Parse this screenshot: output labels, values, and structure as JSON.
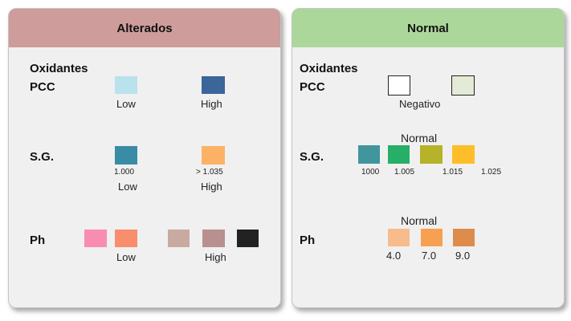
{
  "left": {
    "title": "Alterados",
    "section_title": "Oxidantes",
    "pcc": {
      "label": "PCC",
      "low": "Low",
      "high": "High",
      "colors": [
        "#b9e2ec",
        "#3c6599"
      ]
    },
    "sg": {
      "label": "S.G.",
      "val_low": "1.000",
      "val_high": "> 1.035",
      "low": "Low",
      "high": "High",
      "colors": [
        "#3a8ba6",
        "#fcb265"
      ]
    },
    "ph": {
      "label": "Ph",
      "low": "Low",
      "high": "High",
      "colors": [
        "#f98cb2",
        "#f88e6d",
        "#c8aaa1",
        "#b89090",
        "#222222"
      ]
    }
  },
  "right": {
    "title": "Normal",
    "section_title": "Oxidantes",
    "pcc": {
      "label": "PCC",
      "caption": "Negativo",
      "colors": [
        "#ffffff",
        "#e3ead6"
      ]
    },
    "sg": {
      "label": "S.G.",
      "caption": "Normal",
      "values": [
        "1000",
        "1.005",
        "1.015",
        "1.025"
      ],
      "colors": [
        "#40969c",
        "#27ae67",
        "#b6b229",
        "#fdbe2a"
      ]
    },
    "ph": {
      "label": "Ph",
      "caption": "Normal",
      "values": [
        "4.0",
        "7.0",
        "9.0"
      ],
      "colors": [
        "#f8bb8c",
        "#f7a052",
        "#de8c4c"
      ]
    }
  }
}
